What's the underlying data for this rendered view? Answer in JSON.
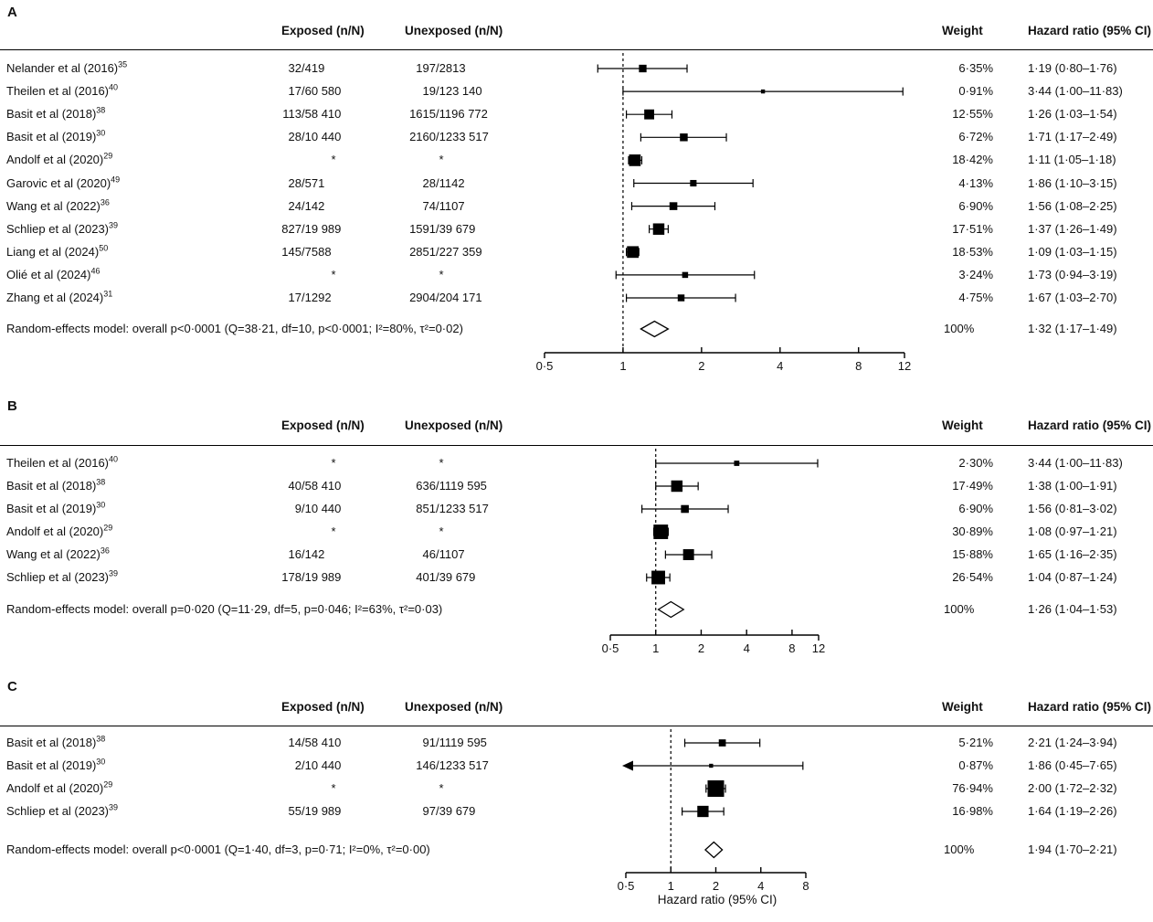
{
  "labels": {
    "xaxis_title": "Hazard ratio (95% CI)",
    "star": "*"
  },
  "chart_data": [
    {
      "type": "forest",
      "panel": "A",
      "col_headers": {
        "exposed": "Exposed (n/N)",
        "unexposed": "Unexposed (n/N)",
        "weight": "Weight",
        "hr": "Hazard ratio (95% CI)"
      },
      "axis": {
        "scale": "log",
        "min": 0.5,
        "max": 12,
        "ref_line": 1,
        "ticks": [
          0.5,
          1,
          2,
          4,
          8,
          12
        ],
        "tick_labels": [
          "0·5",
          "1",
          "2",
          "4",
          "8",
          "12"
        ]
      },
      "rows": [
        {
          "study": "Nelander et al (2016)",
          "ref": "35",
          "exposed": "32/419",
          "unexposed": "197/2813",
          "weight": "6·35%",
          "weight_value": 6.35,
          "hr_label": "1·19 (0·80–1·76)",
          "hr": 1.19,
          "ci_low": 0.8,
          "ci_high": 1.76
        },
        {
          "study": "Theilen et al (2016)",
          "ref": "40",
          "exposed": "17/60 580",
          "unexposed": "19/123 140",
          "weight": "0·91%",
          "weight_value": 0.91,
          "hr_label": "3·44 (1·00–11·83)",
          "hr": 3.44,
          "ci_low": 1.0,
          "ci_high": 11.83
        },
        {
          "study": "Basit et al (2018)",
          "ref": "38",
          "exposed": "113/58 410",
          "unexposed": "1615/1196 772",
          "weight": "12·55%",
          "weight_value": 12.55,
          "hr_label": "1·26 (1·03–1·54)",
          "hr": 1.26,
          "ci_low": 1.03,
          "ci_high": 1.54
        },
        {
          "study": "Basit et al (2019)",
          "ref": "30",
          "exposed": "28/10 440",
          "unexposed": "2160/1233 517",
          "weight": "6·72%",
          "weight_value": 6.72,
          "hr_label": "1·71 (1·17–2·49)",
          "hr": 1.71,
          "ci_low": 1.17,
          "ci_high": 2.49
        },
        {
          "study": "Andolf et al (2020)",
          "ref": "29",
          "exposed": "*",
          "unexposed": "*",
          "weight": "18·42%",
          "weight_value": 18.42,
          "hr_label": "1·11 (1·05–1·18)",
          "hr": 1.11,
          "ci_low": 1.05,
          "ci_high": 1.18
        },
        {
          "study": "Garovic et al (2020)",
          "ref": "49",
          "exposed": "28/571",
          "unexposed": "28/1142",
          "weight": "4·13%",
          "weight_value": 4.13,
          "hr_label": "1·86 (1·10–3·15)",
          "hr": 1.86,
          "ci_low": 1.1,
          "ci_high": 3.15
        },
        {
          "study": "Wang et al (2022)",
          "ref": "36",
          "exposed": "24/142",
          "unexposed": "74/1107",
          "weight": "6·90%",
          "weight_value": 6.9,
          "hr_label": "1·56 (1·08–2·25)",
          "hr": 1.56,
          "ci_low": 1.08,
          "ci_high": 2.25
        },
        {
          "study": "Schliep et al (2023)",
          "ref": "39",
          "exposed": "827/19 989",
          "unexposed": "1591/39 679",
          "weight": "17·51%",
          "weight_value": 17.51,
          "hr_label": "1·37 (1·26–1·49)",
          "hr": 1.37,
          "ci_low": 1.26,
          "ci_high": 1.49
        },
        {
          "study": "Liang et al (2024)",
          "ref": "50",
          "exposed": "145/7588",
          "unexposed": "2851/227 359",
          "weight": "18·53%",
          "weight_value": 18.53,
          "hr_label": "1·09 (1·03–1·15)",
          "hr": 1.09,
          "ci_low": 1.03,
          "ci_high": 1.15
        },
        {
          "study": "Olié et al (2024)",
          "ref": "46",
          "exposed": "*",
          "unexposed": "*",
          "weight": "3·24%",
          "weight_value": 3.24,
          "hr_label": "1·73 (0·94–3·19)",
          "hr": 1.73,
          "ci_low": 0.94,
          "ci_high": 3.19
        },
        {
          "study": "Zhang et al (2024)",
          "ref": "31",
          "exposed": "17/1292",
          "unexposed": "2904/204 171",
          "weight": "4·75%",
          "weight_value": 4.75,
          "hr_label": "1·67 (1·03–2·70)",
          "hr": 1.67,
          "ci_low": 1.03,
          "ci_high": 2.7
        }
      ],
      "summary": {
        "label": "Random-effects model: overall p<0·0001 (Q=38·21, df=10, p<0·0001; I²=80%, τ²=0·02)",
        "weight": "100%",
        "hr_label": "1·32 (1·17–1·49)",
        "hr": 1.32,
        "ci_low": 1.17,
        "ci_high": 1.49
      }
    },
    {
      "type": "forest",
      "panel": "B",
      "col_headers": {
        "exposed": "Exposed (n/N)",
        "unexposed": "Unexposed (n/N)",
        "weight": "Weight",
        "hr": "Hazard ratio (95% CI)"
      },
      "axis": {
        "scale": "log",
        "min": 0.5,
        "max": 12,
        "ref_line": 1,
        "ticks": [
          0.5,
          1,
          2,
          4,
          8,
          12
        ],
        "tick_labels": [
          "0·5",
          "1",
          "2",
          "4",
          "8",
          "12"
        ]
      },
      "rows": [
        {
          "study": "Theilen et al (2016)",
          "ref": "40",
          "exposed": "*",
          "unexposed": "*",
          "weight": "2·30%",
          "weight_value": 2.3,
          "hr_label": "3·44 (1·00–11·83)",
          "hr": 3.44,
          "ci_low": 1.0,
          "ci_high": 11.83
        },
        {
          "study": "Basit et al (2018)",
          "ref": "38",
          "exposed": "40/58 410",
          "unexposed": "636/1119 595",
          "weight": "17·49%",
          "weight_value": 17.49,
          "hr_label": "1·38 (1·00–1·91)",
          "hr": 1.38,
          "ci_low": 1.0,
          "ci_high": 1.91
        },
        {
          "study": "Basit et al (2019)",
          "ref": "30",
          "exposed": "9/10 440",
          "unexposed": "851/1233 517",
          "weight": "6·90%",
          "weight_value": 6.9,
          "hr_label": "1·56 (0·81–3·02)",
          "hr": 1.56,
          "ci_low": 0.81,
          "ci_high": 3.02
        },
        {
          "study": "Andolf et al (2020)",
          "ref": "29",
          "exposed": "*",
          "unexposed": "*",
          "weight": "30·89%",
          "weight_value": 30.89,
          "hr_label": "1·08 (0·97–1·21)",
          "hr": 1.08,
          "ci_low": 0.97,
          "ci_high": 1.21
        },
        {
          "study": "Wang et al (2022)",
          "ref": "36",
          "exposed": "16/142",
          "unexposed": "46/1107",
          "weight": "15·88%",
          "weight_value": 15.88,
          "hr_label": "1·65 (1·16–2·35)",
          "hr": 1.65,
          "ci_low": 1.16,
          "ci_high": 2.35
        },
        {
          "study": "Schliep et al (2023)",
          "ref": "39",
          "exposed": "178/19 989",
          "unexposed": "401/39 679",
          "weight": "26·54%",
          "weight_value": 26.54,
          "hr_label": "1·04 (0·87–1·24)",
          "hr": 1.04,
          "ci_low": 0.87,
          "ci_high": 1.24
        }
      ],
      "summary": {
        "label": "Random-effects model: overall p=0·020 (Q=11·29, df=5, p=0·046; I²=63%, τ²=0·03)",
        "weight": "100%",
        "hr_label": "1·26 (1·04–1·53)",
        "hr": 1.26,
        "ci_low": 1.04,
        "ci_high": 1.53
      }
    },
    {
      "type": "forest",
      "panel": "C",
      "col_headers": {
        "exposed": "Exposed (n/N)",
        "unexposed": "Unexposed (n/N)",
        "weight": "Weight",
        "hr": "Hazard ratio (95% CI)"
      },
      "axis": {
        "scale": "log",
        "min": 0.5,
        "max": 8,
        "ref_line": 1,
        "ticks": [
          0.5,
          1,
          2,
          4,
          8
        ],
        "tick_labels": [
          "0·5",
          "1",
          "2",
          "4",
          "8"
        ]
      },
      "rows": [
        {
          "study": "Basit et al (2018)",
          "ref": "38",
          "exposed": "14/58 410",
          "unexposed": "91/1119 595",
          "weight": "5·21%",
          "weight_value": 5.21,
          "hr_label": "2·21 (1·24–3·94)",
          "hr": 2.21,
          "ci_low": 1.24,
          "ci_high": 3.94
        },
        {
          "study": "Basit et al (2019)",
          "ref": "30",
          "exposed": "2/10 440",
          "unexposed": "146/1233 517",
          "weight": "0·87%",
          "weight_value": 0.87,
          "hr_label": "1·86 (0·45–7·65)",
          "hr": 1.86,
          "ci_low": 0.45,
          "ci_high": 7.65
        },
        {
          "study": "Andolf et al (2020)",
          "ref": "29",
          "exposed": "*",
          "unexposed": "*",
          "weight": "76·94%",
          "weight_value": 76.94,
          "hr_label": "2·00 (1·72–2·32)",
          "hr": 2.0,
          "ci_low": 1.72,
          "ci_high": 2.32
        },
        {
          "study": "Schliep et al (2023)",
          "ref": "39",
          "exposed": "55/19 989",
          "unexposed": "97/39 679",
          "weight": "16·98%",
          "weight_value": 16.98,
          "hr_label": "1·64 (1·19–2·26)",
          "hr": 1.64,
          "ci_low": 1.19,
          "ci_high": 2.26
        }
      ],
      "summary": {
        "label": "Random-effects model: overall p<0·0001 (Q=1·40, df=3, p=0·71; I²=0%, τ²=0·00)",
        "weight": "100%",
        "hr_label": "1·94 (1·70–2·21)",
        "hr": 1.94,
        "ci_low": 1.7,
        "ci_high": 2.21
      }
    }
  ]
}
